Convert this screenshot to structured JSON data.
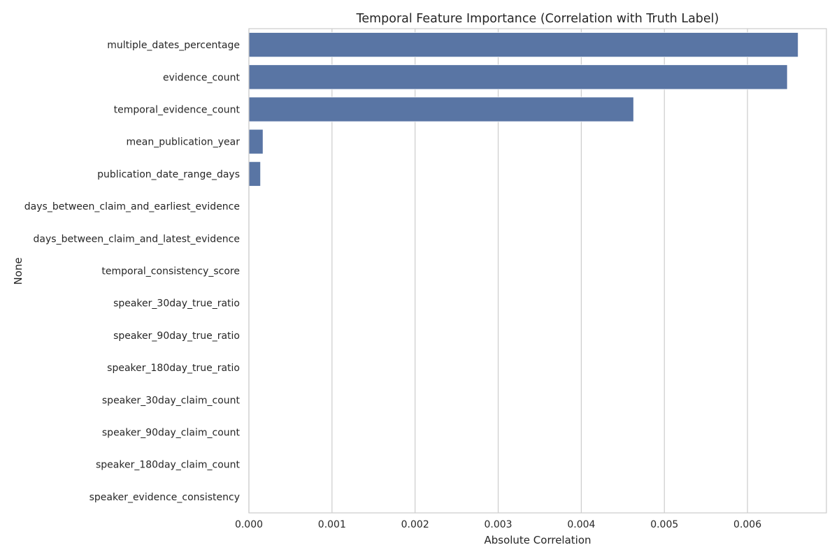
{
  "chart_data": {
    "type": "bar",
    "orientation": "horizontal",
    "title": "Temporal Feature Importance (Correlation with Truth Label)",
    "xlabel": "Absolute Correlation",
    "ylabel": "None",
    "xlim": [
      0,
      0.00695
    ],
    "x_ticks": [
      "0.000",
      "0.001",
      "0.002",
      "0.003",
      "0.004",
      "0.005",
      "0.006"
    ],
    "x_tick_values": [
      0,
      0.001,
      0.002,
      0.003,
      0.004,
      0.005,
      0.006
    ],
    "grid": "vertical",
    "legend": "none",
    "categories": [
      "multiple_dates_percentage",
      "evidence_count",
      "temporal_evidence_count",
      "mean_publication_year",
      "publication_date_range_days",
      "days_between_claim_and_earliest_evidence",
      "days_between_claim_and_latest_evidence",
      "temporal_consistency_score",
      "speaker_30day_true_ratio",
      "speaker_90day_true_ratio",
      "speaker_180day_true_ratio",
      "speaker_30day_claim_count",
      "speaker_90day_claim_count",
      "speaker_180day_claim_count",
      "speaker_evidence_consistency"
    ],
    "values": [
      0.00661,
      0.00648,
      0.00463,
      0.00017,
      0.00014,
      0,
      0,
      0,
      0,
      0,
      0,
      0,
      0,
      0,
      0
    ],
    "colors": {
      "bar": "#5975a4",
      "grid": "#cccccc",
      "frame": "#cccccc",
      "text": "#262626"
    }
  }
}
